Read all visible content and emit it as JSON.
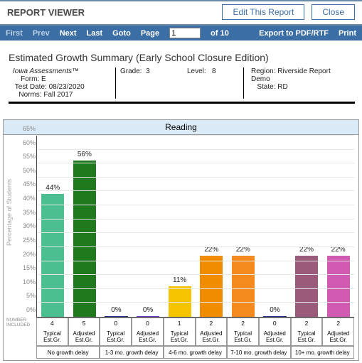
{
  "header": {
    "title": "REPORT VIEWER",
    "edit_label": "Edit This Report",
    "close_label": "Close"
  },
  "nav": {
    "first": "First",
    "prev": "Prev",
    "next": "Next",
    "last": "Last",
    "goto": "Goto",
    "page_label": "Page",
    "page_value": "1",
    "page_total": "of 10",
    "export": "Export to PDF/RTF",
    "print": "Print"
  },
  "info": {
    "title": "Estimated Growth Summary (Early School Closure Edition)",
    "assessment": "Iowa Assessments™",
    "form_label": "Form:",
    "form": "E",
    "testdate_label": "Test Date:",
    "testdate": "08/23/2020",
    "norms_label": "Norms:",
    "norms": "Fall 2017",
    "grade_label": "Grade:",
    "grade": "3",
    "level_label": "Level:",
    "level": "8",
    "region_label": "Region:",
    "region": "Riverside Report Demo",
    "state_label": "State:",
    "state": "RD"
  },
  "chart": {
    "type": "bar",
    "title": "Reading",
    "ylabel": "Percentage of Students",
    "ylim": [
      0,
      65
    ],
    "ytick_step": 5,
    "background_color": "#ffffff",
    "grid_color": "#e6e6e6",
    "axis_color": "#444444",
    "title_band_color": "#dbeaf7",
    "pct_label_fontsize": 10,
    "tick_fontsize": 9,
    "bars": [
      {
        "pct": 44,
        "count": 4,
        "color": "#4bbf8f",
        "cat": "Typical Est.Gr."
      },
      {
        "pct": 56,
        "count": 5,
        "color": "#1e7a1c",
        "cat": "Adjusted Est.Gr."
      },
      {
        "pct": 0,
        "count": 0,
        "color": "#1a2f8c",
        "cat": "Typical Est.Gr."
      },
      {
        "pct": 0,
        "count": 0,
        "color": "#7a2fc9",
        "cat": "Adjusted Est.Gr."
      },
      {
        "pct": 11,
        "count": 1,
        "color": "#f5c400",
        "cat": "Typical Est.Gr."
      },
      {
        "pct": 22,
        "count": 2,
        "color": "#f08c00",
        "cat": "Adjusted Est.Gr."
      },
      {
        "pct": 22,
        "count": 2,
        "color": "#f58a1f",
        "cat": "Typical Est.Gr."
      },
      {
        "pct": 0,
        "count": 0,
        "color": "#1a2f8c",
        "cat": "Adjusted Est.Gr."
      },
      {
        "pct": 22,
        "count": 2,
        "color": "#9c5a7a",
        "cat": "Typical Est.Gr."
      },
      {
        "pct": 22,
        "count": 2,
        "color": "#d15bb2",
        "cat": "Adjusted Est.Gr."
      }
    ],
    "groups": [
      {
        "label": "No growth delay",
        "span": 2
      },
      {
        "label": "1-3 mo. growth delay",
        "span": 2
      },
      {
        "label": "4-6 mo. growth delay",
        "span": 2
      },
      {
        "label": "7-10 mo. growth delay",
        "span": 2
      },
      {
        "label": "10+ mo. growth delay",
        "span": 2
      }
    ]
  }
}
